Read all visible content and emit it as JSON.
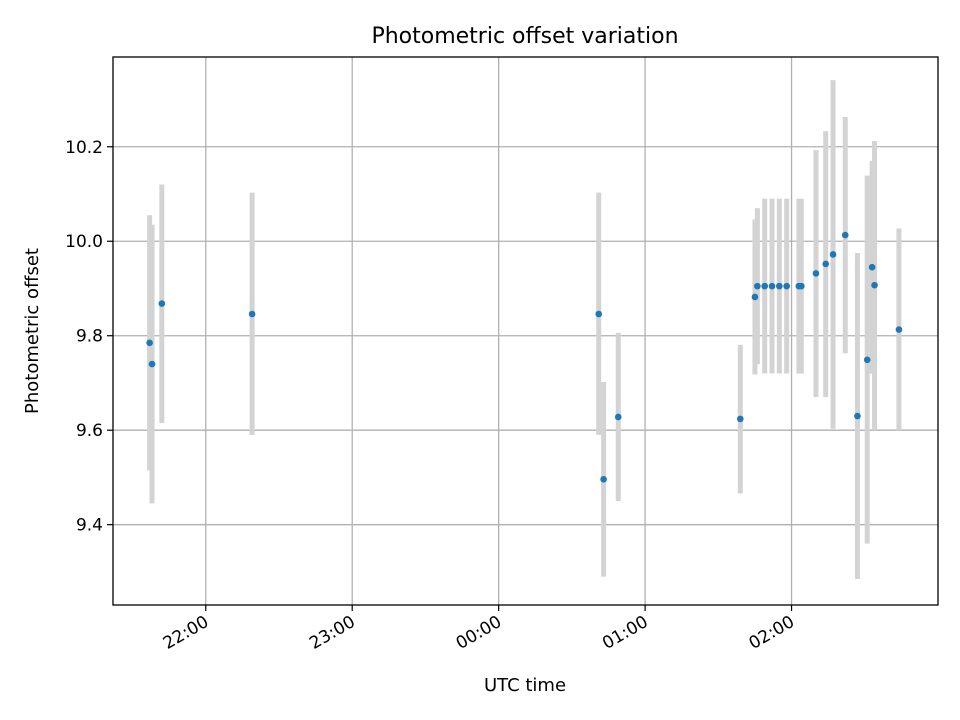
{
  "chart_data": {
    "type": "scatter",
    "title": "Photometric offset variation",
    "xlabel": "UTC time",
    "ylabel": "Photometric offset",
    "xlim": [
      "21:22",
      "27:00"
    ],
    "ylim": [
      9.23,
      10.39
    ],
    "x_ticks": [
      "22:00",
      "23:00",
      "00:00",
      "01:00",
      "02:00"
    ],
    "y_ticks": [
      "9.4",
      "9.6",
      "9.8",
      "10.0",
      "10.2"
    ],
    "grid": true,
    "errorbar_color": "#d3d3d3",
    "marker_color": "#1f77b4",
    "points": [
      {
        "x": "21:37",
        "y": 9.785,
        "ylo": 9.515,
        "yhi": 10.055
      },
      {
        "x": "21:38",
        "y": 9.74,
        "ylo": 9.445,
        "yhi": 10.035
      },
      {
        "x": "21:42",
        "y": 9.868,
        "ylo": 9.615,
        "yhi": 10.12
      },
      {
        "x": "22:19",
        "y": 9.846,
        "ylo": 9.59,
        "yhi": 10.103
      },
      {
        "x": "00:41",
        "y": 9.846,
        "ylo": 9.59,
        "yhi": 10.103
      },
      {
        "x": "00:43",
        "y": 9.496,
        "ylo": 9.29,
        "yhi": 9.702
      },
      {
        "x": "00:49",
        "y": 9.628,
        "ylo": 9.45,
        "yhi": 9.806
      },
      {
        "x": "01:39",
        "y": 9.624,
        "ylo": 9.466,
        "yhi": 9.781
      },
      {
        "x": "01:45",
        "y": 9.882,
        "ylo": 9.718,
        "yhi": 10.046
      },
      {
        "x": "01:46",
        "y": 9.905,
        "ylo": 9.74,
        "yhi": 10.07
      },
      {
        "x": "01:49",
        "y": 9.905,
        "ylo": 9.72,
        "yhi": 10.09
      },
      {
        "x": "01:52",
        "y": 9.905,
        "ylo": 9.72,
        "yhi": 10.09
      },
      {
        "x": "01:55",
        "y": 9.905,
        "ylo": 9.72,
        "yhi": 10.09
      },
      {
        "x": "01:58",
        "y": 9.905,
        "ylo": 9.72,
        "yhi": 10.09
      },
      {
        "x": "02:03",
        "y": 9.905,
        "ylo": 9.72,
        "yhi": 10.09
      },
      {
        "x": "02:04",
        "y": 9.905,
        "ylo": 9.72,
        "yhi": 10.09
      },
      {
        "x": "02:10",
        "y": 9.932,
        "ylo": 9.67,
        "yhi": 10.193
      },
      {
        "x": "02:14",
        "y": 9.952,
        "ylo": 9.67,
        "yhi": 10.233
      },
      {
        "x": "02:17",
        "y": 9.972,
        "ylo": 9.603,
        "yhi": 10.341
      },
      {
        "x": "02:22",
        "y": 10.013,
        "ylo": 9.763,
        "yhi": 10.263
      },
      {
        "x": "02:27",
        "y": 9.63,
        "ylo": 9.285,
        "yhi": 9.975
      },
      {
        "x": "02:31",
        "y": 9.749,
        "ylo": 9.36,
        "yhi": 10.139
      },
      {
        "x": "02:33",
        "y": 9.945,
        "ylo": 9.72,
        "yhi": 10.17
      },
      {
        "x": "02:34",
        "y": 9.907,
        "ylo": 9.6,
        "yhi": 10.212
      },
      {
        "x": "02:44",
        "y": 9.813,
        "ylo": 9.6,
        "yhi": 10.027
      }
    ]
  }
}
